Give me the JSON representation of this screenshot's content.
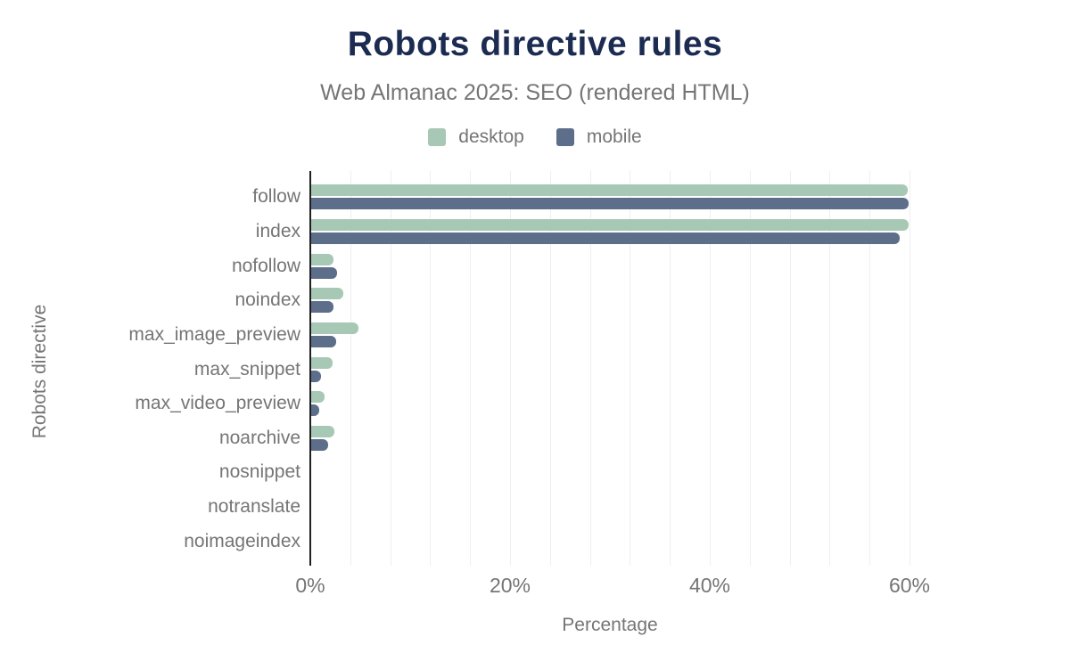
{
  "header": {
    "title": "Robots directive rules",
    "subtitle": "Web Almanac 2025: SEO (rendered HTML)"
  },
  "legend": [
    {
      "label": "desktop",
      "color": "#a6c8b5"
    },
    {
      "label": "mobile",
      "color": "#5d6e8a"
    }
  ],
  "colors": {
    "title": "#1c2b52",
    "muted_text": "#757575",
    "axis_line": "#1f1f1f",
    "gridline": "#efefef",
    "desktop": "#a6c8b5",
    "mobile": "#5d6e8a"
  },
  "chart_data": {
    "type": "bar",
    "orientation": "horizontal",
    "title": "Robots directive rules",
    "subtitle": "Web Almanac 2025: SEO (rendered HTML)",
    "xlabel": "Percentage",
    "ylabel": "Robots directive",
    "xlim": [
      0,
      65.4
    ],
    "xticks": [
      "0%",
      "20%",
      "40%",
      "60%"
    ],
    "xtick_values": [
      0,
      20,
      40,
      60
    ],
    "grid": "vertical, minor lines every 4%",
    "legend_position": "top",
    "categories": [
      "follow",
      "index",
      "nofollow",
      "noindex",
      "max_image_preview",
      "max_snippet",
      "max_video_preview",
      "noarchive",
      "nosnippet",
      "notranslate",
      "noimageindex"
    ],
    "series": [
      {
        "name": "desktop",
        "color": "#a6c8b5",
        "values": [
          59.8,
          59.9,
          2.3,
          3.3,
          4.8,
          2.2,
          1.4,
          2.4,
          0,
          0,
          0
        ]
      },
      {
        "name": "mobile",
        "color": "#5d6e8a",
        "values": [
          59.9,
          59.0,
          2.7,
          2.3,
          2.6,
          1.1,
          0.9,
          1.8,
          0,
          0,
          0
        ]
      }
    ]
  }
}
